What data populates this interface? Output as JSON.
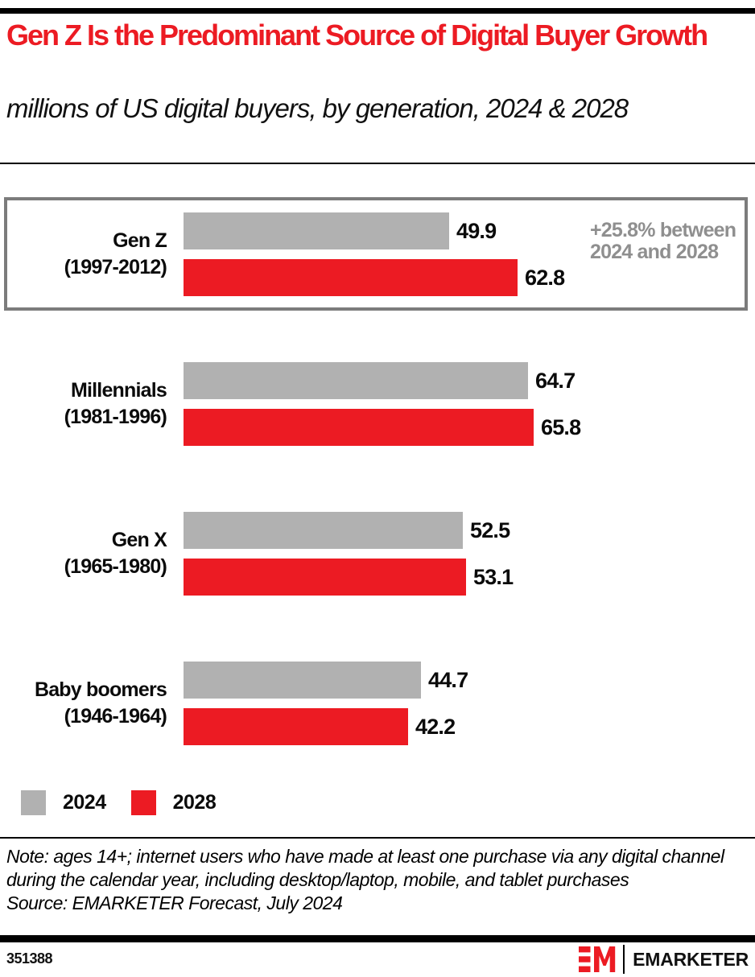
{
  "header": {
    "title": "Gen Z Is the Predominant Source of Digital Buyer Growth",
    "subtitle": "millions of US digital buyers, by generation, 2024 & 2028"
  },
  "colors": {
    "accent_red": "#EC1B23",
    "bar_gray": "#B1B1B1",
    "annotation_gray": "#8F8F8F",
    "highlight_border_gray": "#7C7C7C",
    "black": "#000000"
  },
  "chart_data": {
    "type": "bar",
    "orientation": "horizontal",
    "title": "Gen Z Is the Predominant Source of Digital Buyer Growth",
    "subtitle": "millions of US digital buyers, by generation, 2024 & 2028",
    "unit": "millions of US digital buyers",
    "xlim": [
      0,
      70
    ],
    "grid": false,
    "legend_position": "bottom-left",
    "series_names": [
      "2024",
      "2028"
    ],
    "series_colors": [
      "#B1B1B1",
      "#EC1B23"
    ],
    "groups": [
      {
        "name": "Gen Z",
        "years": "(1997-2012)",
        "values": [
          49.9,
          62.8
        ],
        "highlight": true,
        "annotation": "+25.8% between 2024 and 2028"
      },
      {
        "name": "Millennials",
        "years": "(1981-1996)",
        "values": [
          64.7,
          65.8
        ],
        "highlight": false,
        "annotation": ""
      },
      {
        "name": "Gen X",
        "years": "(1965-1980)",
        "values": [
          52.5,
          53.1
        ],
        "highlight": false,
        "annotation": ""
      },
      {
        "name": "Baby boomers",
        "years": "(1946-1964)",
        "values": [
          44.7,
          42.2
        ],
        "highlight": false,
        "annotation": ""
      }
    ]
  },
  "legend": [
    {
      "label": "2024",
      "color": "#B1B1B1"
    },
    {
      "label": "2028",
      "color": "#EC1B23"
    }
  ],
  "footer": {
    "note": "Note: ages 14+; internet users who have made at least one purchase via any digital channel during the calendar year, including desktop/laptop, mobile, and tablet purchases",
    "source": "Source: EMARKETER Forecast, July 2024",
    "chart_id": "351388",
    "logo_text": "EMARKETER"
  }
}
